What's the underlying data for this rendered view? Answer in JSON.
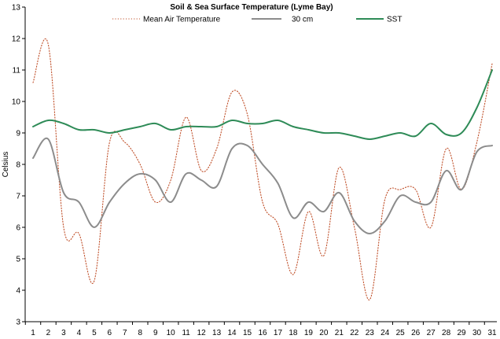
{
  "chart_data": {
    "type": "line",
    "title": "Soil & Sea Surface Temperature (Lyme Bay)",
    "xlabel": "",
    "ylabel": "Celsius",
    "ylim": [
      3,
      13
    ],
    "yticks": [
      "3",
      "4",
      "5",
      "6",
      "7",
      "8",
      "9",
      "10",
      "11",
      "12",
      "13"
    ],
    "grid": false,
    "legend_position": "top",
    "categories": [
      "1",
      "2",
      "3",
      "4",
      "5",
      "6",
      "7",
      "8",
      "9",
      "10",
      "11",
      "12",
      "13",
      "14",
      "15",
      "16",
      "17",
      "18",
      "19",
      "20",
      "21",
      "22",
      "23",
      "24",
      "25",
      "26",
      "27",
      "28",
      "29",
      "30",
      "31"
    ],
    "series": [
      {
        "name": "Mean Air Temperature",
        "color": "#c0502a",
        "style": "dotted",
        "values": [
          10.6,
          11.8,
          6.0,
          5.8,
          4.3,
          8.7,
          8.7,
          8.0,
          6.8,
          7.5,
          9.5,
          7.8,
          8.5,
          10.3,
          9.6,
          6.8,
          6.1,
          4.5,
          6.5,
          5.1,
          7.9,
          6.0,
          3.7,
          6.9,
          7.2,
          7.2,
          6.0,
          8.5,
          7.2,
          8.7,
          11.2
        ]
      },
      {
        "name": "30 cm",
        "color": "#8c8c8c",
        "style": "solid",
        "values": [
          8.2,
          8.8,
          7.1,
          6.8,
          6.0,
          6.8,
          7.4,
          7.7,
          7.5,
          6.8,
          7.7,
          7.5,
          7.3,
          8.5,
          8.6,
          8.0,
          7.4,
          6.3,
          6.8,
          6.5,
          7.1,
          6.2,
          5.8,
          6.2,
          7.0,
          6.8,
          6.8,
          7.8,
          7.2,
          8.4,
          8.6
        ]
      },
      {
        "name": "SST",
        "color": "#2e8b57",
        "style": "solid",
        "values": [
          9.2,
          9.4,
          9.3,
          9.1,
          9.1,
          9.0,
          9.1,
          9.2,
          9.3,
          9.1,
          9.2,
          9.2,
          9.2,
          9.4,
          9.3,
          9.3,
          9.4,
          9.2,
          9.1,
          9.0,
          9.0,
          8.9,
          8.8,
          8.9,
          9.0,
          8.9,
          9.3,
          8.95,
          9.0,
          9.8,
          11.0
        ]
      }
    ]
  }
}
